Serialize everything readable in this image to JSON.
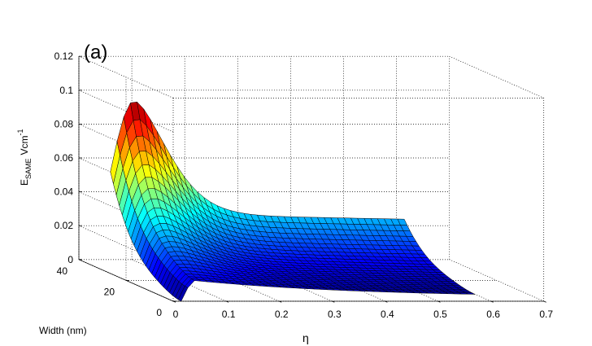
{
  "chart_data": {
    "type": "surface3d",
    "panel_label": "(a)",
    "xlabel": "η",
    "ylabel": "Width (nm)",
    "zlabel": {
      "base": "E",
      "subscript": "SAME",
      "unit": "Vcm",
      "unit_superscript": "-1"
    },
    "x_ticks": [
      "0",
      "0.1",
      "0.2",
      "0.3",
      "0.4",
      "0.5",
      "0.6",
      "0.7"
    ],
    "y_ticks": [
      "0",
      "20",
      "40"
    ],
    "z_ticks": [
      "0",
      "0.02",
      "0.04",
      "0.06",
      "0.08",
      "0.1",
      "0.12"
    ],
    "xlim": [
      0,
      0.7
    ],
    "ylim": [
      0,
      40
    ],
    "zlim": [
      0,
      0.12
    ],
    "grid": true,
    "colormap": "jet",
    "surface": {
      "eta_range": [
        0.015,
        0.57
      ],
      "width_range": [
        0,
        30
      ],
      "peak_eta": 0.06,
      "peak_value": 0.1,
      "value_at_eta_start_width_max": 0.058,
      "value_at_eta_end_width_max": 0.03,
      "value_at_eta_end_width_min": 0.002
    }
  }
}
